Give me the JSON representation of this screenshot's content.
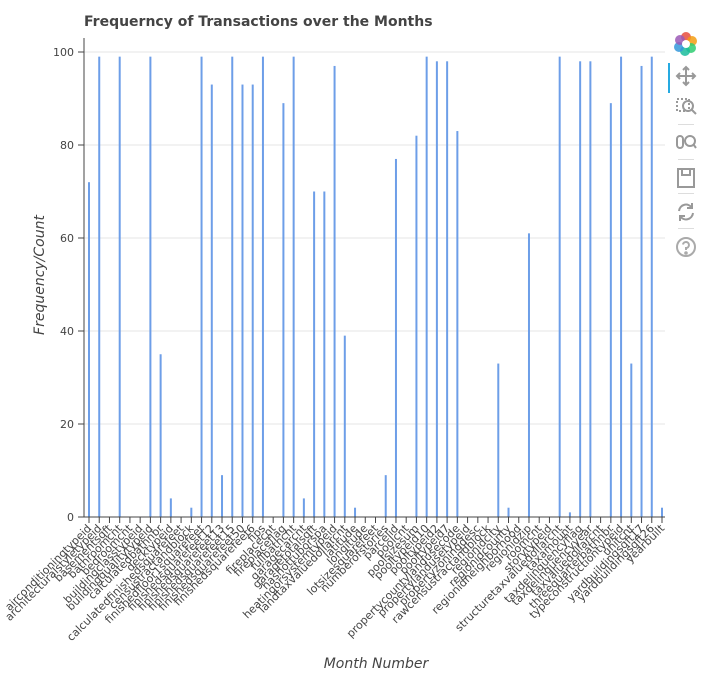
{
  "chart_data": {
    "type": "bar",
    "title": "Frequerncy of Transactions over the Months",
    "xlabel": "Month Number",
    "ylabel": "Frequency/Count",
    "ylim": [
      0,
      100
    ],
    "yticks": [
      0,
      20,
      40,
      60,
      80,
      100
    ],
    "grid": true,
    "bar_color": "#6d9ee8",
    "categories": [
      "airconditioningtypeid",
      "architecturalstyletypeid",
      "basementsqft",
      "bathroomcnt",
      "bedroomcnt",
      "buildingclasstypeid",
      "buildingqualitytypeid",
      "calculatedbathnbr",
      "decktypeid",
      "calculatedfinishedsquarefeet",
      "censustractandblock",
      "finishedfloor1squarefeet",
      "finishedsquarefeet12",
      "finishedsquarefeet13",
      "finishedsquarefeet15",
      "finishedsquarefeet50",
      "finishedsquarefeet6",
      "fips",
      "fireplacecnt",
      "fireplaceflag",
      "fullbathcnt",
      "garagecarcnt",
      "garagetotalsqft",
      "hashottuborspa",
      "heatingorsystemtypeid",
      "landtaxvaluedollarcnt",
      "latitude",
      "longitude",
      "lotsizesquarefeet",
      "numberofstories",
      "parcelid",
      "poolcnt",
      "poolsizesum",
      "pooltypeid10",
      "pooltypeid2",
      "pooltypeid7",
      "propertycountylandusecode",
      "propertylandusetypeid",
      "propertyzoningdesc",
      "rawcensustractandblock",
      "regionidcity",
      "regionidcounty",
      "regionidneighborhood",
      "regionidzip",
      "roomcnt",
      "storytypeid",
      "structuretaxvaluedollarcnt",
      "taxamount",
      "taxdelinquencyflag",
      "taxdelinquencyyear",
      "taxvaluedollarcnt",
      "threequarterbathnbr",
      "typeconstructiontypeid",
      "unitcnt",
      "yardbuildingsqft17",
      "yardbuildingsqft26",
      "yearbuilt"
    ],
    "values": [
      72,
      99,
      0,
      99,
      0,
      0,
      99,
      35,
      4,
      0,
      2,
      99,
      93,
      9,
      99,
      93,
      93,
      99,
      0,
      89,
      99,
      4,
      70,
      70,
      97,
      39,
      2,
      0,
      0,
      9,
      77,
      0,
      82,
      99,
      98,
      98,
      83,
      0,
      0,
      0,
      33,
      2,
      0,
      61,
      0,
      0,
      99,
      1,
      98,
      98,
      0,
      89,
      99,
      33,
      97,
      99,
      2
    ]
  },
  "toolbar": {
    "logo_icon": "bokeh-logo-icon",
    "pan_icon": "pan-icon",
    "box_zoom_icon": "box-zoom-icon",
    "wheel_zoom_icon": "wheel-zoom-icon",
    "save_icon": "save-icon",
    "reset_icon": "reset-icon",
    "help_icon": "help-icon"
  }
}
